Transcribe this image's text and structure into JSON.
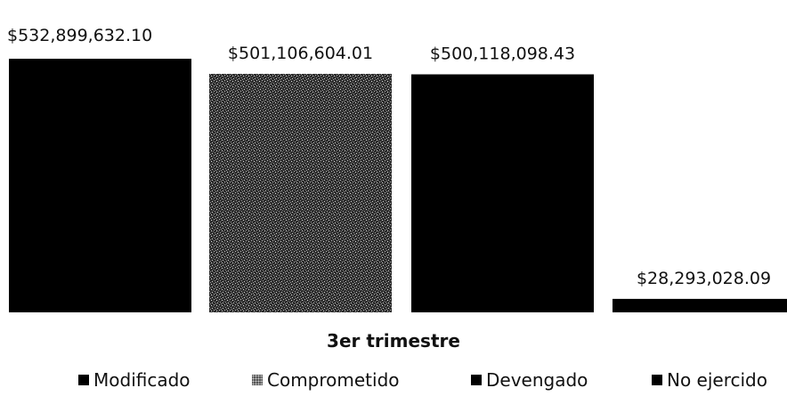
{
  "chart_data": {
    "type": "bar",
    "categories": [
      "3er trimestre"
    ],
    "series": [
      {
        "name": "Modificado",
        "values": [
          532899632.1
        ],
        "label": "$532,899,632.10",
        "color": "#000000",
        "pattern": "solid"
      },
      {
        "name": "Comprometido",
        "values": [
          501106604.01
        ],
        "label": "$501,106,604.01",
        "color": "#3a3a3a",
        "pattern": "speckled"
      },
      {
        "name": "Devengado",
        "values": [
          500118098.43
        ],
        "label": "$500,118,098.43",
        "color": "#000000",
        "pattern": "solid"
      },
      {
        "name": "No ejercido",
        "values": [
          28293028.09
        ],
        "label": "$28,293,028.09",
        "color": "#000000",
        "pattern": "solid"
      }
    ],
    "title": "",
    "xlabel": "",
    "ylabel": "",
    "ylim": [
      0,
      532899632.1
    ],
    "grid": false,
    "legend_position": "bottom"
  }
}
